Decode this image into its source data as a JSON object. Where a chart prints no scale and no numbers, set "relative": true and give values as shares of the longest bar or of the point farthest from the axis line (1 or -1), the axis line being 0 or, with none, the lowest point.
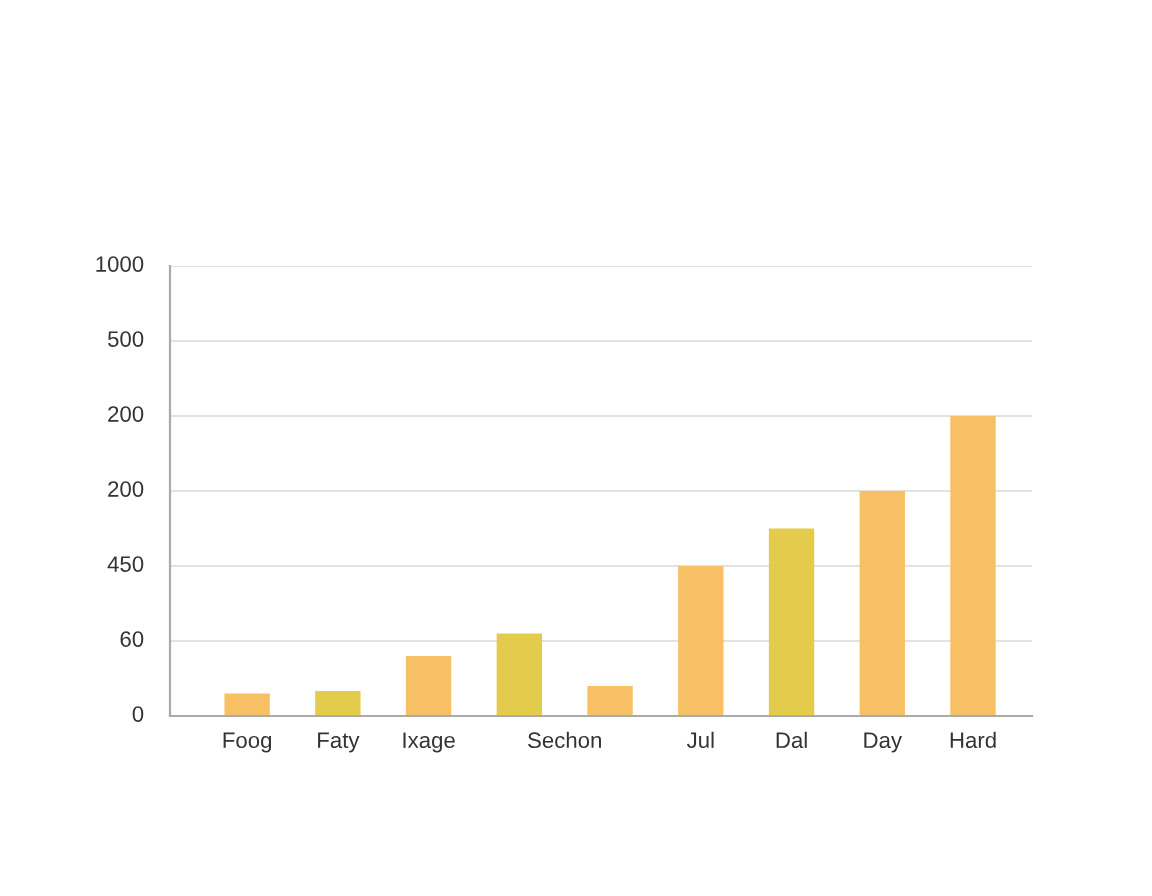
{
  "chart_data": {
    "type": "bar",
    "categories": [
      "Foog",
      "Faty",
      "Ixage",
      "Sechon",
      null,
      "Jul",
      "Dal",
      "Day",
      "Hard"
    ],
    "values": [
      0.075,
      0.083,
      0.2,
      0.275,
      0.1,
      0.5,
      0.625,
      0.75,
      1
    ],
    "colors": [
      "#f8c065",
      "#e3cb4c",
      "#f8c065",
      "#e3cb4c",
      "#f8c065",
      "#f8c065",
      "#e3cb4c",
      "#f8c065",
      "#f8c065"
    ],
    "relative": true,
    "annotations": [
      "0",
      "60",
      "450",
      "200",
      "200",
      "500",
      "1000"
    ],
    "grid": "y"
  }
}
